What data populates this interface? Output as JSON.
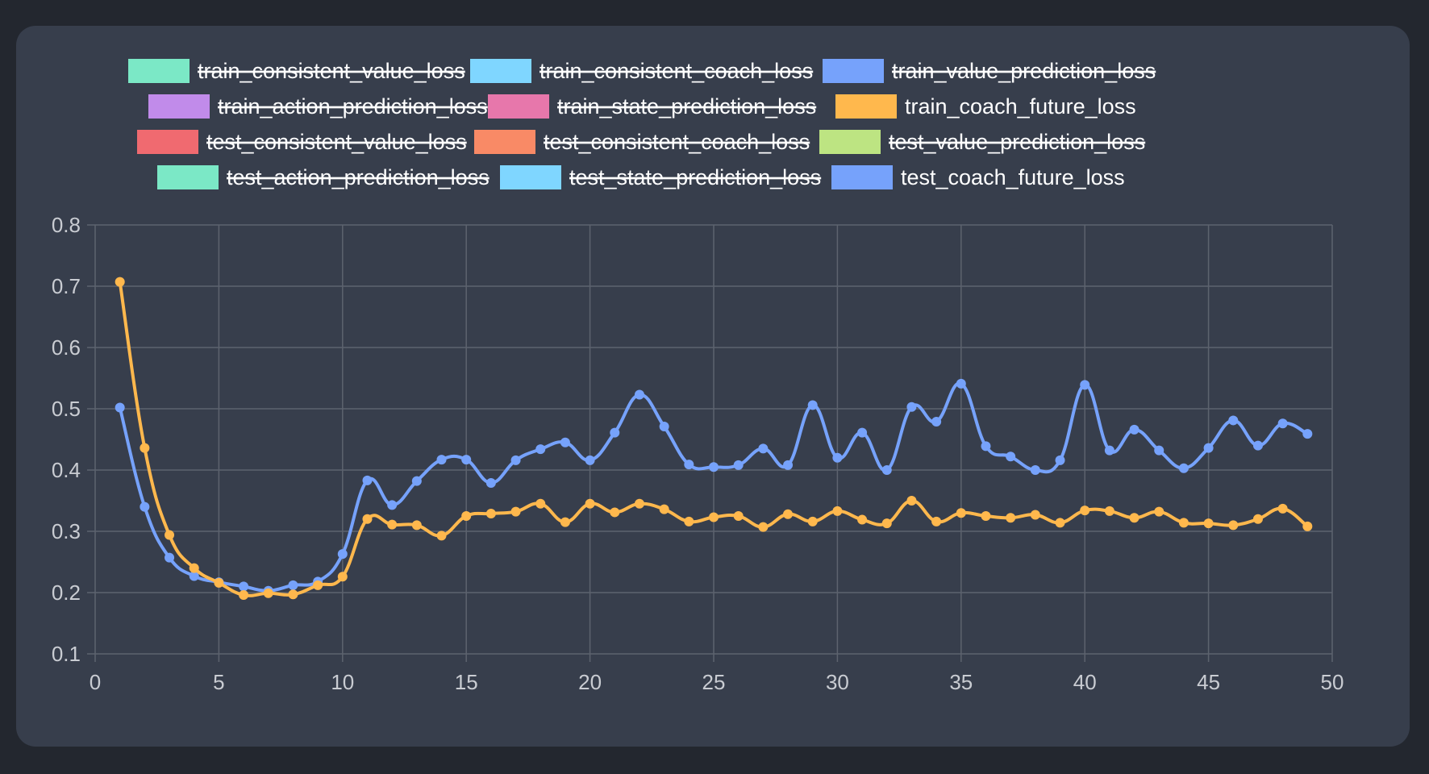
{
  "chart_data": {
    "type": "line",
    "xlim": [
      0,
      50
    ],
    "ylim": [
      0.1,
      0.8
    ],
    "x_ticks": [
      "0",
      "5",
      "10",
      "15",
      "20",
      "25",
      "30",
      "35",
      "40",
      "45",
      "50"
    ],
    "y_ticks": [
      "0.1",
      "0.2",
      "0.3",
      "0.4",
      "0.5",
      "0.6",
      "0.7",
      "0.8"
    ],
    "grid": true,
    "legend_position": "top",
    "legend": [
      {
        "name": "train_consistent_value_loss",
        "color": "#7be8c6",
        "hidden": true
      },
      {
        "name": "train_consistent_coach_loss",
        "color": "#7fd6ff",
        "hidden": true
      },
      {
        "name": "train_value_prediction_loss",
        "color": "#76a2fb",
        "hidden": true
      },
      {
        "name": "train_action_prediction_loss",
        "color": "#c18bea",
        "hidden": true
      },
      {
        "name": "train_state_prediction_loss",
        "color": "#e777ab",
        "hidden": true
      },
      {
        "name": "train_coach_future_loss",
        "color": "#ffb84d",
        "hidden": false
      },
      {
        "name": "test_consistent_value_loss",
        "color": "#f06a70",
        "hidden": true
      },
      {
        "name": "test_consistent_coach_loss",
        "color": "#f98a66",
        "hidden": true
      },
      {
        "name": "test_value_prediction_loss",
        "color": "#bde482",
        "hidden": true
      },
      {
        "name": "test_action_prediction_loss",
        "color": "#7be8c6",
        "hidden": true
      },
      {
        "name": "test_state_prediction_loss",
        "color": "#7fd6ff",
        "hidden": true
      },
      {
        "name": "test_coach_future_loss",
        "color": "#76a2fb",
        "hidden": false
      }
    ],
    "x": [
      1,
      2,
      3,
      4,
      5,
      6,
      7,
      8,
      9,
      10,
      11,
      12,
      13,
      14,
      15,
      16,
      17,
      18,
      19,
      20,
      21,
      22,
      23,
      24,
      25,
      26,
      27,
      28,
      29,
      30,
      31,
      32,
      33,
      34,
      35,
      36,
      37,
      38,
      39,
      40,
      41,
      42,
      43,
      44,
      45,
      46,
      47,
      48,
      49
    ],
    "series": [
      {
        "name": "test_coach_future_loss",
        "color": "#76a2fb",
        "values": [
          0.502,
          0.34,
          0.257,
          0.227,
          0.217,
          0.21,
          0.203,
          0.212,
          0.218,
          0.263,
          0.383,
          0.343,
          0.382,
          0.417,
          0.417,
          0.379,
          0.416,
          0.434,
          0.445,
          0.416,
          0.461,
          0.523,
          0.471,
          0.409,
          0.405,
          0.408,
          0.435,
          0.408,
          0.506,
          0.42,
          0.461,
          0.4,
          0.503,
          0.479,
          0.541,
          0.439,
          0.422,
          0.4,
          0.416,
          0.539,
          0.432,
          0.466,
          0.432,
          0.403,
          0.436,
          0.481,
          0.44,
          0.476,
          0.459
        ]
      },
      {
        "name": "train_coach_future_loss",
        "color": "#ffb84d",
        "values": [
          0.707,
          0.436,
          0.294,
          0.24,
          0.216,
          0.196,
          0.199,
          0.197,
          0.212,
          0.226,
          0.32,
          0.311,
          0.31,
          0.293,
          0.325,
          0.329,
          0.332,
          0.345,
          0.315,
          0.345,
          0.331,
          0.345,
          0.336,
          0.316,
          0.323,
          0.325,
          0.307,
          0.328,
          0.316,
          0.333,
          0.319,
          0.313,
          0.35,
          0.316,
          0.33,
          0.325,
          0.322,
          0.327,
          0.314,
          0.334,
          0.333,
          0.322,
          0.332,
          0.314,
          0.313,
          0.31,
          0.32,
          0.337,
          0.308
        ]
      }
    ]
  }
}
